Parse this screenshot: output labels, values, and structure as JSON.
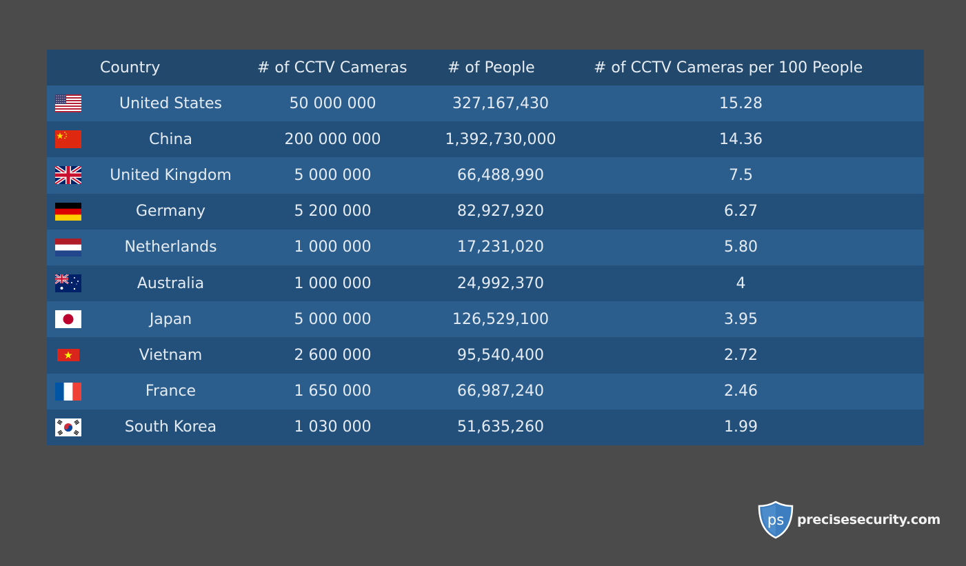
{
  "chart_data": {
    "type": "table",
    "columns": [
      "Country",
      "# of CCTV Cameras",
      "# of People",
      "# of CCTV Cameras per 100 People"
    ],
    "rows": [
      {
        "flag": "us-flag-icon",
        "country": "United States",
        "cameras": "50 000 000",
        "people": "327,167,430",
        "per100": "15.28"
      },
      {
        "flag": "cn-flag-icon",
        "country": "China",
        "cameras": "200 000 000",
        "people": "1,392,730,000",
        "per100": "14.36"
      },
      {
        "flag": "gb-flag-icon",
        "country": "United Kingdom",
        "cameras": "5 000 000",
        "people": "66,488,990",
        "per100": "7.5"
      },
      {
        "flag": "de-flag-icon",
        "country": "Germany",
        "cameras": "5 200 000",
        "people": "82,927,920",
        "per100": "6.27"
      },
      {
        "flag": "nl-flag-icon",
        "country": "Netherlands",
        "cameras": "1 000 000",
        "people": "17,231,020",
        "per100": "5.80"
      },
      {
        "flag": "au-flag-icon",
        "country": "Australia",
        "cameras": "1 000 000",
        "people": "24,992,370",
        "per100": "4"
      },
      {
        "flag": "jp-flag-icon",
        "country": "Japan",
        "cameras": "5 000 000",
        "people": "126,529,100",
        "per100": "3.95"
      },
      {
        "flag": "vn-flag-icon",
        "country": "Vietnam",
        "cameras": "2 600 000",
        "people": "95,540,400",
        "per100": "2.72"
      },
      {
        "flag": "fr-flag-icon",
        "country": "France",
        "cameras": "1 650 000",
        "people": "66,987,240",
        "per100": "2.46"
      },
      {
        "flag": "kr-flag-icon",
        "country": "South Korea",
        "cameras": "1 030 000",
        "people": "51,635,260",
        "per100": "1.99"
      }
    ]
  },
  "logo": {
    "badge_text": "ps",
    "text": "precisesecurity.com"
  },
  "colors": {
    "background": "#4b4b4b",
    "header_row": "#22486b",
    "row_light": "#2b5e8d",
    "row_dark": "#23507a"
  }
}
